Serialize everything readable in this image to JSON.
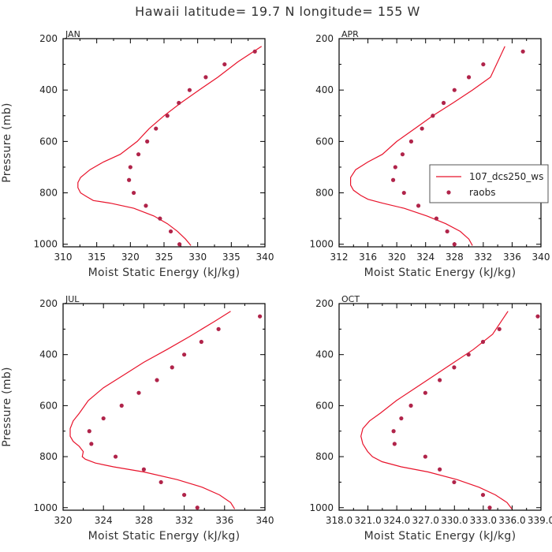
{
  "figure": {
    "title": "Hawaii  latitude= 19.7 N longitude= 155 W"
  },
  "colors": {
    "series": "#e8132b",
    "points": "#b0244a",
    "axis": "#000000",
    "text": "#333333"
  },
  "chart_data": [
    {
      "type": "line",
      "panel": "JAN",
      "xlabel": "Moist Static Energy (kJ/kg)",
      "ylabel": "Pressure (mb)",
      "xlim": [
        310,
        340
      ],
      "ylim": [
        1010,
        200
      ],
      "xticks": [
        310,
        315,
        320,
        325,
        330,
        335,
        340
      ],
      "xtick_labels": [
        "310",
        "315",
        "320",
        "325",
        "330",
        "335",
        "340"
      ],
      "yticks": [
        200,
        400,
        600,
        800,
        1000
      ],
      "ytick_labels": [
        "200",
        "400",
        "600",
        "800",
        "1000"
      ],
      "series": [
        {
          "name": "107_dcs250_ws",
          "style": "line",
          "x": [
            329.0,
            328.2,
            327.0,
            325.5,
            323.5,
            320.5,
            317.0,
            314.5,
            313.5,
            312.6,
            312.2,
            312.2,
            312.6,
            314.0,
            316.0,
            318.5,
            321.0,
            322.8,
            325.0,
            327.5,
            330.2,
            333.0,
            336.0,
            339.5
          ],
          "y": [
            1005,
            980,
            950,
            920,
            890,
            860,
            840,
            830,
            815,
            800,
            780,
            760,
            740,
            710,
            680,
            650,
            600,
            550,
            500,
            450,
            400,
            350,
            290,
            230
          ]
        },
        {
          "name": "raobs",
          "style": "points",
          "x": [
            327.3,
            326.0,
            324.4,
            322.3,
            320.5,
            319.8,
            320.0,
            321.2,
            322.5,
            323.8,
            325.5,
            327.2,
            328.8,
            331.2,
            334.0,
            338.5
          ],
          "y": [
            1000,
            950,
            900,
            850,
            800,
            750,
            700,
            650,
            600,
            550,
            500,
            450,
            400,
            350,
            300,
            250
          ]
        }
      ]
    },
    {
      "type": "line",
      "panel": "APR",
      "xlabel": "Moist Static Energy (kJ/kg)",
      "ylabel": "",
      "xlim": [
        312,
        340
      ],
      "ylim": [
        1010,
        200
      ],
      "xticks": [
        312,
        316,
        320,
        324,
        328,
        332,
        336,
        340
      ],
      "xtick_labels": [
        "312",
        "316",
        "320",
        "324",
        "328",
        "332",
        "336",
        "340"
      ],
      "yticks": [
        200,
        400,
        600,
        800,
        1000
      ],
      "ytick_labels": [
        "200",
        "400",
        "600",
        "800",
        "1000"
      ],
      "legend": {
        "location": "right",
        "entries": [
          "107_dcs250_ws",
          "raobs"
        ]
      },
      "series": [
        {
          "name": "107_dcs250_ws",
          "style": "line",
          "x": [
            330.5,
            330.0,
            328.8,
            326.8,
            324.2,
            321.0,
            318.0,
            316.0,
            315.0,
            314.0,
            313.6,
            313.6,
            314.3,
            316.0,
            318.0,
            320.0,
            322.5,
            325.0,
            327.8,
            330.5,
            333.0,
            335.0
          ],
          "y": [
            1005,
            980,
            950,
            920,
            890,
            860,
            840,
            825,
            810,
            790,
            770,
            740,
            710,
            680,
            650,
            600,
            550,
            500,
            450,
            400,
            350,
            230
          ]
        },
        {
          "name": "raobs",
          "style": "points",
          "x": [
            328.0,
            327.0,
            325.5,
            323.0,
            321.0,
            319.5,
            319.8,
            320.8,
            322.0,
            323.5,
            325.0,
            326.5,
            328.0,
            330.0,
            332.0,
            337.5
          ],
          "y": [
            1000,
            950,
            900,
            850,
            800,
            750,
            700,
            650,
            600,
            550,
            500,
            450,
            400,
            350,
            300,
            250
          ]
        }
      ]
    },
    {
      "type": "line",
      "panel": "JUL",
      "xlabel": "Moist Static Energy (kJ/kg)",
      "ylabel": "Pressure (mb)",
      "xlim": [
        320,
        340
      ],
      "ylim": [
        1010,
        200
      ],
      "xticks": [
        320,
        324,
        328,
        332,
        336,
        340
      ],
      "xtick_labels": [
        "320",
        "324",
        "328",
        "332",
        "336",
        "340"
      ],
      "yticks": [
        200,
        400,
        600,
        800,
        1000
      ],
      "ytick_labels": [
        "200",
        "400",
        "600",
        "800",
        "1000"
      ],
      "series": [
        {
          "name": "107_dcs250_ws",
          "style": "line",
          "x": [
            337.0,
            336.6,
            335.5,
            333.8,
            331.3,
            328.0,
            325.0,
            323.2,
            322.2,
            321.9,
            322.0,
            321.6,
            321.0,
            320.7,
            320.7,
            321.0,
            321.6,
            322.5,
            324.0,
            326.0,
            328.0,
            330.3,
            332.5,
            335.0,
            336.6
          ],
          "y": [
            1005,
            980,
            950,
            920,
            890,
            860,
            840,
            825,
            810,
            800,
            780,
            760,
            740,
            720,
            690,
            660,
            630,
            580,
            530,
            480,
            430,
            380,
            330,
            270,
            230
          ]
        },
        {
          "name": "raobs",
          "style": "points",
          "x": [
            333.3,
            332.0,
            329.7,
            328.0,
            325.2,
            322.8,
            322.6,
            324.0,
            325.8,
            327.5,
            329.3,
            330.8,
            332.0,
            333.7,
            335.4,
            339.5
          ],
          "y": [
            1000,
            950,
            900,
            850,
            800,
            750,
            700,
            650,
            600,
            550,
            500,
            450,
            400,
            350,
            300,
            250
          ]
        }
      ]
    },
    {
      "type": "line",
      "panel": "OCT",
      "xlabel": "Moist Static Energy (kJ/kg)",
      "ylabel": "",
      "xlim": [
        318.03,
        339.03
      ],
      "ylim": [
        1010,
        200
      ],
      "xticks": [
        318.03,
        321.03,
        324.03,
        327.03,
        330.03,
        333.03,
        336.03,
        339.03
      ],
      "xtick_labels": [
        "318.0",
        "321.0",
        "324.0",
        "327.0",
        "330.0",
        "333.0",
        "336.0",
        "339.0"
      ],
      "yticks": [
        200,
        400,
        600,
        800,
        1000
      ],
      "ytick_labels": [
        "200",
        "400",
        "600",
        "800",
        "1000"
      ],
      "series": [
        {
          "name": "107_dcs250_ws",
          "style": "line",
          "x": [
            336.0,
            335.5,
            334.3,
            332.6,
            330.3,
            327.3,
            324.5,
            322.5,
            321.5,
            321.0,
            320.5,
            320.3,
            320.5,
            321.2,
            322.3,
            324.0,
            326.0,
            328.0,
            330.0,
            332.0,
            334.0,
            335.6
          ],
          "y": [
            1005,
            980,
            950,
            920,
            890,
            860,
            840,
            820,
            800,
            780,
            750,
            720,
            690,
            660,
            630,
            580,
            530,
            480,
            430,
            380,
            320,
            230
          ]
        },
        {
          "name": "raobs",
          "style": "points",
          "x": [
            333.7,
            333.0,
            330.0,
            328.5,
            327.0,
            323.8,
            323.7,
            324.5,
            325.5,
            327.0,
            328.5,
            330.0,
            331.5,
            333.0,
            334.7,
            338.7
          ],
          "y": [
            1000,
            950,
            900,
            850,
            800,
            750,
            700,
            650,
            600,
            550,
            500,
            450,
            400,
            350,
            300,
            250
          ]
        }
      ]
    }
  ]
}
